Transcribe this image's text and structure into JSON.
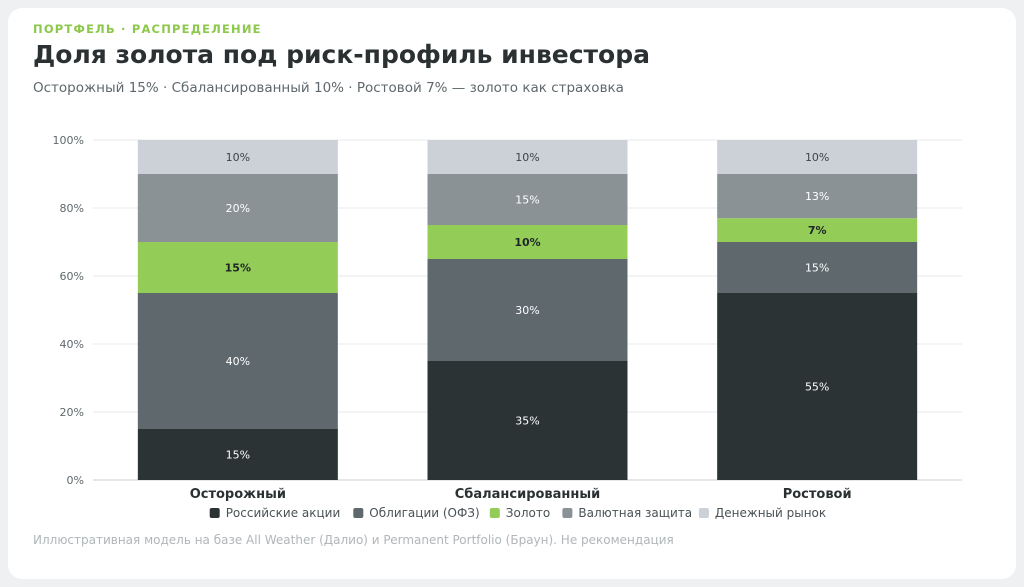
{
  "header": {
    "kicker": "ПОРТФЕЛЬ · РАСПРЕДЕЛЕНИЕ",
    "title": "Доля золота под риск-профиль инвестора",
    "subtitle": "Осторожный 15% · Сбалансированный 10% · Ростовой 7% — золото как страховка"
  },
  "footer": {
    "note": "Иллюстративная модель на базе All Weather (Далио) и Permanent Portfolio (Браун). Не рекомендация"
  },
  "chart_data": {
    "type": "bar",
    "stacked": true,
    "categories": [
      "Осторожный",
      "Сбалансированный",
      "Ростовой"
    ],
    "series": [
      {
        "name": "Российские акции",
        "values": [
          15,
          35,
          55
        ],
        "color": "#2c3335",
        "label_color": "#ffffff"
      },
      {
        "name": "Облигации (ОФЗ)",
        "values": [
          40,
          30,
          15
        ],
        "color": "#5f696d",
        "label_color": "#ffffff"
      },
      {
        "name": "Золото",
        "values": [
          15,
          10,
          7
        ],
        "color": "#93cd58",
        "label_color": "#1f2527",
        "emphasis": true
      },
      {
        "name": "Валютная защита",
        "values": [
          20,
          15,
          13
        ],
        "color": "#8a9296",
        "label_color": "#ffffff"
      },
      {
        "name": "Денежный рынок",
        "values": [
          10,
          10,
          10
        ],
        "color": "#cbd1d6",
        "label_color": "#3c4447"
      }
    ],
    "ylim": [
      0,
      100
    ],
    "yticks": [
      0,
      20,
      40,
      60,
      80,
      100
    ],
    "ytick_labels": [
      "0%",
      "20%",
      "40%",
      "60%",
      "80%",
      "100%"
    ],
    "value_suffix": "%",
    "grid": true,
    "legend_position": "bottom"
  }
}
